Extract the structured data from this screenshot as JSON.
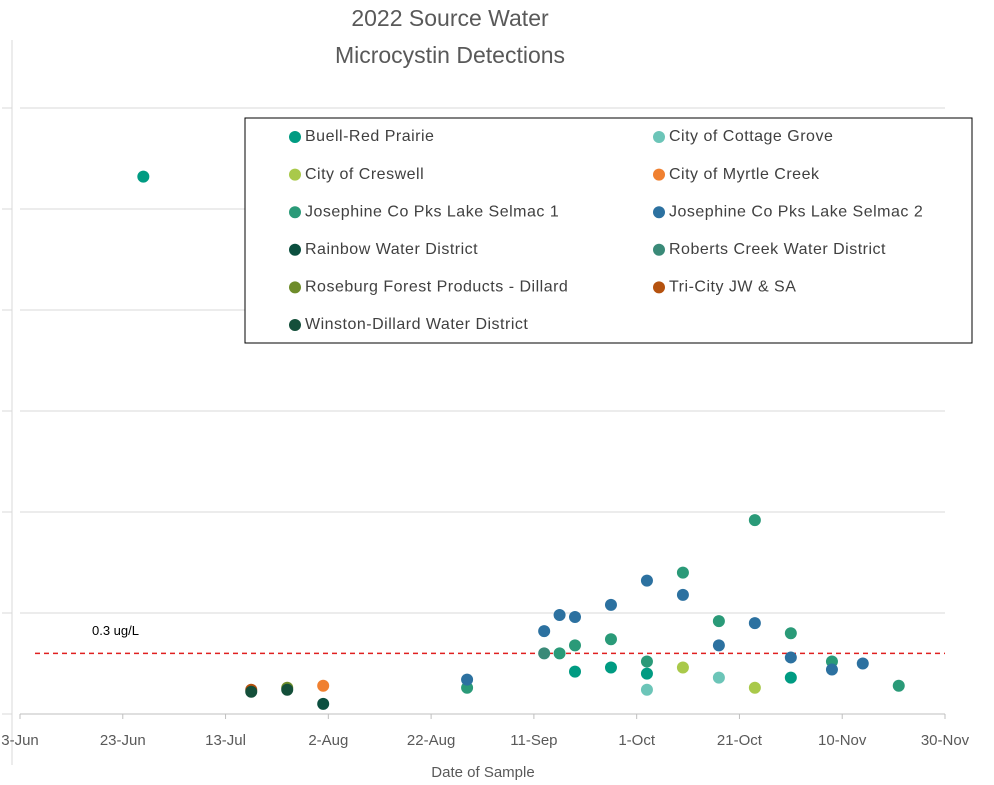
{
  "chart_data": {
    "type": "scatter",
    "title": [
      "2022 Source Water",
      "Microcystin Detections"
    ],
    "x_label": "Date of Sample",
    "xlim": [
      "2022-06-03",
      "2022-11-30"
    ],
    "xticks": [
      {
        "value": "2022-06-03",
        "label": "3-Jun"
      },
      {
        "value": "2022-06-23",
        "label": "23-Jun"
      },
      {
        "value": "2022-07-13",
        "label": "13-Jul"
      },
      {
        "value": "2022-08-02",
        "label": "2-Aug"
      },
      {
        "value": "2022-08-22",
        "label": "22-Aug"
      },
      {
        "value": "2022-09-11",
        "label": "11-Sep"
      },
      {
        "value": "2022-10-01",
        "label": "1-Oct"
      },
      {
        "value": "2022-10-21",
        "label": "21-Oct"
      },
      {
        "value": "2022-11-10",
        "label": "10-Nov"
      },
      {
        "value": "2022-11-30",
        "label": "30-Nov"
      }
    ],
    "ylim": [
      0,
      3
    ],
    "yticks": [
      0,
      0.5,
      1,
      1.5,
      2,
      2.5,
      3
    ],
    "grid": true,
    "threshold": {
      "value": 0.3,
      "label": "0.3 ug/L",
      "color": "#e02020"
    },
    "series": [
      {
        "name": "Buell-Red Prairie",
        "color": "#009b82",
        "x": [
          "2022-06-27",
          "2022-09-19",
          "2022-09-26",
          "2022-10-03",
          "2022-10-31"
        ],
        "values": [
          2.66,
          0.21,
          0.23,
          0.2,
          0.18
        ]
      },
      {
        "name": "City of Cottage Grove",
        "color": "#6cc5b8",
        "x": [
          "2022-10-03",
          "2022-10-17"
        ],
        "values": [
          0.12,
          0.18
        ]
      },
      {
        "name": "City of Creswell",
        "color": "#a9c94a",
        "x": [
          "2022-10-10",
          "2022-10-24"
        ],
        "values": [
          0.23,
          0.13
        ]
      },
      {
        "name": "City of Myrtle Creek",
        "color": "#f08030",
        "x": [
          "2022-08-01"
        ],
        "values": [
          0.14
        ]
      },
      {
        "name": "Josephine Co Pks Lake Selmac 1",
        "color": "#2a9a78",
        "x": [
          "2022-08-29",
          "2022-09-16",
          "2022-09-19",
          "2022-09-26",
          "2022-10-03",
          "2022-10-10",
          "2022-10-17",
          "2022-10-24",
          "2022-10-31",
          "2022-11-08",
          "2022-11-21"
        ],
        "values": [
          0.13,
          0.3,
          0.34,
          0.37,
          0.26,
          0.7,
          0.46,
          0.96,
          0.4,
          0.26,
          0.14
        ]
      },
      {
        "name": "Josephine Co Pks Lake Selmac 2",
        "color": "#2c71a0",
        "x": [
          "2022-08-29",
          "2022-09-13",
          "2022-09-16",
          "2022-09-19",
          "2022-09-26",
          "2022-10-03",
          "2022-10-10",
          "2022-10-17",
          "2022-10-24",
          "2022-10-31",
          "2022-11-08",
          "2022-11-14"
        ],
        "values": [
          0.17,
          0.41,
          0.49,
          0.48,
          0.54,
          0.66,
          0.59,
          0.34,
          0.45,
          0.28,
          0.22,
          0.25
        ]
      },
      {
        "name": "Rainbow Water District",
        "color": "#0b4f3f",
        "x": [
          "2022-08-01"
        ],
        "values": [
          0.05
        ]
      },
      {
        "name": "Roberts Creek Water District",
        "color": "#3a8a78",
        "x": [
          "2022-09-13"
        ],
        "values": [
          0.3
        ]
      },
      {
        "name": "Roseburg Forest Products - Dillard",
        "color": "#6e8c2a",
        "x": [
          "2022-07-25"
        ],
        "values": [
          0.13
        ]
      },
      {
        "name": "Tri-City JW & SA",
        "color": "#b5520f",
        "x": [
          "2022-07-18"
        ],
        "values": [
          0.12
        ]
      },
      {
        "name": "Winston-Dillard Water District",
        "color": "#144f3a",
        "x": [
          "2022-07-18",
          "2022-07-25"
        ],
        "values": [
          0.11,
          0.12
        ]
      }
    ]
  }
}
